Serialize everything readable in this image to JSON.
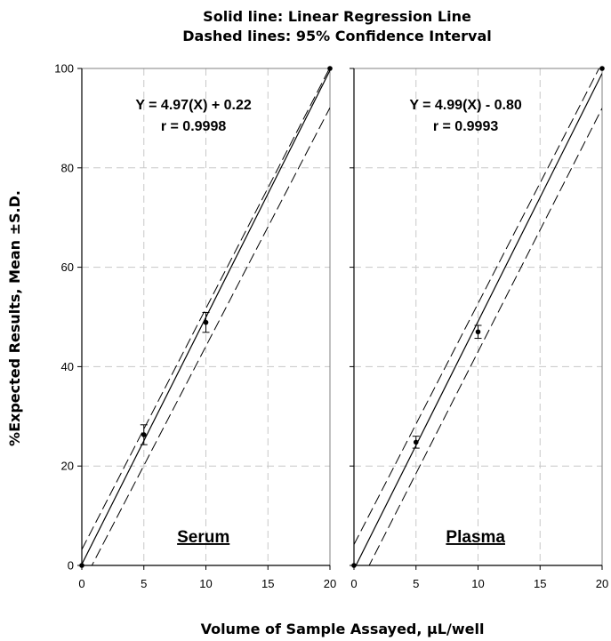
{
  "chart_data": {
    "type": "scatter",
    "title_lines": [
      "Solid line: Linear Regression Line",
      "Dashed lines: 95% Confidence Interval"
    ],
    "ylabel": "%Expected Results, Mean ±S.D.",
    "xlabel": "Volume of Sample Assayed, µL/well",
    "ylim": [
      0,
      100
    ],
    "xlim": [
      0,
      20
    ],
    "y_ticks": [
      "0",
      "20",
      "40",
      "60",
      "80",
      "100"
    ],
    "x_ticks": [
      "0",
      "5",
      "10",
      "15",
      "20"
    ],
    "grid": true,
    "panels": [
      {
        "label": "Serum",
        "equation": "Y = 4.97(X) + 0.22",
        "r_text": "r = 0.9998",
        "slope": 4.97,
        "intercept": 0.22,
        "points": [
          {
            "x": 0,
            "y": 0,
            "sd": 0
          },
          {
            "x": 5,
            "y": 26.3,
            "sd": 2.0
          },
          {
            "x": 10,
            "y": 48.9,
            "sd": 2.0
          },
          {
            "x": 20,
            "y": 100,
            "sd": 0
          }
        ],
        "ci_upper": {
          "slope": 4.85,
          "intercept": 3.2
        },
        "ci_lower": {
          "slope": 4.8,
          "intercept": -3.9
        }
      },
      {
        "label": "Plasma",
        "equation": "Y = 4.99(X) - 0.80",
        "r_text": "r = 0.9993",
        "slope": 4.99,
        "intercept": -0.8,
        "points": [
          {
            "x": 0,
            "y": 0,
            "sd": 0
          },
          {
            "x": 5,
            "y": 24.8,
            "sd": 1.2
          },
          {
            "x": 10,
            "y": 47.0,
            "sd": 1.3
          },
          {
            "x": 20,
            "y": 100,
            "sd": 0
          }
        ],
        "ci_upper": {
          "slope": 4.85,
          "intercept": 4.2
        },
        "ci_lower": {
          "slope": 4.9,
          "intercept": -6.0
        }
      }
    ]
  }
}
